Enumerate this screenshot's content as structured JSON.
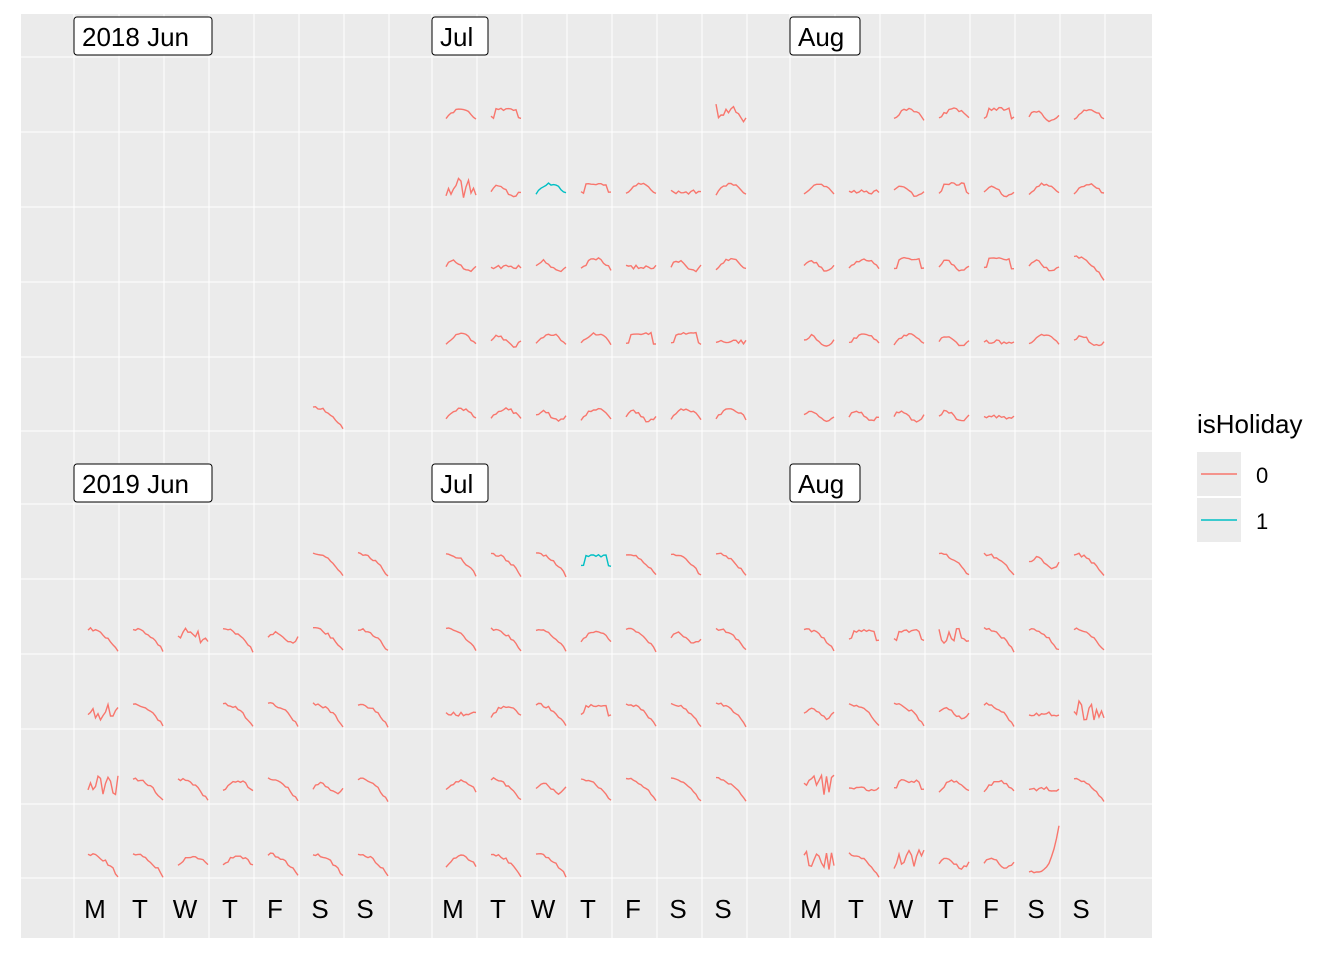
{
  "chart_data": {
    "type": "line",
    "description_type": "calendar-faceted sparkline grid",
    "years": [
      {
        "label_year": "2018",
        "months": [
          {
            "label": "2018 Jun",
            "weeks": [
              [
                null,
                null,
                null,
                null,
                null,
                null,
                null
              ],
              [
                null,
                null,
                null,
                null,
                null,
                null,
                null
              ],
              [
                null,
                null,
                null,
                null,
                null,
                null,
                null
              ],
              [
                null,
                null,
                null,
                null,
                null,
                null,
                null
              ],
              [
                null,
                null,
                null,
                null,
                null,
                {
                  "h": 0,
                  "shape": "drop"
                },
                null
              ]
            ]
          },
          {
            "label": "Jul",
            "weeks": [
              [
                {
                  "h": 0,
                  "shape": "arch"
                },
                {
                  "h": 0,
                  "shape": "plateau"
                },
                null,
                null,
                null,
                null,
                {
                  "h": 0,
                  "shape": "spiky"
                }
              ],
              [
                {
                  "h": 0,
                  "shape": "spiky"
                },
                {
                  "h": 0,
                  "shape": "wave"
                },
                {
                  "h": 1,
                  "shape": "arch"
                },
                {
                  "h": 0,
                  "shape": "plateau"
                },
                {
                  "h": 0,
                  "shape": "arch"
                },
                {
                  "h": 0,
                  "shape": "flat"
                },
                {
                  "h": 0,
                  "shape": "arch"
                }
              ],
              [
                {
                  "h": 0,
                  "shape": "wave"
                },
                {
                  "h": 0,
                  "shape": "flat"
                },
                {
                  "h": 0,
                  "shape": "wave"
                },
                {
                  "h": 0,
                  "shape": "arch"
                },
                {
                  "h": 0,
                  "shape": "flat"
                },
                {
                  "h": 0,
                  "shape": "wave"
                },
                {
                  "h": 0,
                  "shape": "arch"
                }
              ],
              [
                {
                  "h": 0,
                  "shape": "arch"
                },
                {
                  "h": 0,
                  "shape": "wave"
                },
                {
                  "h": 0,
                  "shape": "arch"
                },
                {
                  "h": 0,
                  "shape": "arch"
                },
                {
                  "h": 0,
                  "shape": "plateau"
                },
                {
                  "h": 0,
                  "shape": "plateau"
                },
                {
                  "h": 0,
                  "shape": "flat"
                }
              ],
              [
                {
                  "h": 0,
                  "shape": "arch"
                },
                {
                  "h": 0,
                  "shape": "arch"
                },
                {
                  "h": 0,
                  "shape": "wave"
                },
                {
                  "h": 0,
                  "shape": "arch"
                },
                {
                  "h": 0,
                  "shape": "wave"
                },
                {
                  "h": 0,
                  "shape": "arch"
                },
                {
                  "h": 0,
                  "shape": "arch"
                }
              ]
            ]
          },
          {
            "label": "Aug",
            "weeks": [
              [
                null,
                null,
                {
                  "h": 0,
                  "shape": "arch"
                },
                {
                  "h": 0,
                  "shape": "arch"
                },
                {
                  "h": 0,
                  "shape": "plateau"
                },
                {
                  "h": 0,
                  "shape": "wave"
                },
                {
                  "h": 0,
                  "shape": "arch"
                }
              ],
              [
                {
                  "h": 0,
                  "shape": "arch"
                },
                {
                  "h": 0,
                  "shape": "flat"
                },
                {
                  "h": 0,
                  "shape": "wave"
                },
                {
                  "h": 0,
                  "shape": "plateau"
                },
                {
                  "h": 0,
                  "shape": "wave"
                },
                {
                  "h": 0,
                  "shape": "arch"
                },
                {
                  "h": 0,
                  "shape": "arch"
                }
              ],
              [
                {
                  "h": 0,
                  "shape": "wave"
                },
                {
                  "h": 0,
                  "shape": "arch"
                },
                {
                  "h": 0,
                  "shape": "plateau"
                },
                {
                  "h": 0,
                  "shape": "wave"
                },
                {
                  "h": 0,
                  "shape": "plateau"
                },
                {
                  "h": 0,
                  "shape": "wave"
                },
                {
                  "h": 0,
                  "shape": "drop"
                }
              ],
              [
                {
                  "h": 0,
                  "shape": "wave"
                },
                {
                  "h": 0,
                  "shape": "arch"
                },
                {
                  "h": 0,
                  "shape": "arch"
                },
                {
                  "h": 0,
                  "shape": "wave"
                },
                {
                  "h": 0,
                  "shape": "flat"
                },
                {
                  "h": 0,
                  "shape": "arch"
                },
                {
                  "h": 0,
                  "shape": "wave"
                }
              ],
              [
                {
                  "h": 0,
                  "shape": "wave"
                },
                {
                  "h": 0,
                  "shape": "wave"
                },
                {
                  "h": 0,
                  "shape": "wave"
                },
                {
                  "h": 0,
                  "shape": "wave"
                },
                {
                  "h": 0,
                  "shape": "flat"
                },
                null,
                null
              ]
            ]
          }
        ]
      },
      {
        "label_year": "2019",
        "months": [
          {
            "label": "2019 Jun",
            "weeks": [
              [
                null,
                null,
                null,
                null,
                null,
                {
                  "h": 0,
                  "shape": "drop"
                },
                {
                  "h": 0,
                  "shape": "drop"
                }
              ],
              [
                {
                  "h": 0,
                  "shape": "drop"
                },
                {
                  "h": 0,
                  "shape": "drop"
                },
                {
                  "h": 0,
                  "shape": "spiky"
                },
                {
                  "h": 0,
                  "shape": "drop"
                },
                {
                  "h": 0,
                  "shape": "wave"
                },
                {
                  "h": 0,
                  "shape": "drop"
                },
                {
                  "h": 0,
                  "shape": "drop"
                }
              ],
              [
                {
                  "h": 0,
                  "shape": "spiky"
                },
                {
                  "h": 0,
                  "shape": "drop"
                },
                null,
                {
                  "h": 0,
                  "shape": "drop"
                },
                {
                  "h": 0,
                  "shape": "drop"
                },
                {
                  "h": 0,
                  "shape": "drop"
                },
                {
                  "h": 0,
                  "shape": "drop"
                }
              ],
              [
                {
                  "h": 0,
                  "shape": "spiky"
                },
                {
                  "h": 0,
                  "shape": "drop"
                },
                {
                  "h": 0,
                  "shape": "drop"
                },
                {
                  "h": 0,
                  "shape": "arch"
                },
                {
                  "h": 0,
                  "shape": "drop"
                },
                {
                  "h": 0,
                  "shape": "wave"
                },
                {
                  "h": 0,
                  "shape": "drop"
                }
              ],
              [
                {
                  "h": 0,
                  "shape": "drop"
                },
                {
                  "h": 0,
                  "shape": "drop"
                },
                {
                  "h": 0,
                  "shape": "arch"
                },
                {
                  "h": 0,
                  "shape": "arch"
                },
                {
                  "h": 0,
                  "shape": "drop"
                },
                {
                  "h": 0,
                  "shape": "drop"
                },
                {
                  "h": 0,
                  "shape": "drop"
                }
              ]
            ]
          },
          {
            "label": "Jul",
            "weeks": [
              [
                {
                  "h": 0,
                  "shape": "drop"
                },
                {
                  "h": 0,
                  "shape": "drop"
                },
                {
                  "h": 0,
                  "shape": "drop"
                },
                {
                  "h": 1,
                  "shape": "plateau"
                },
                {
                  "h": 0,
                  "shape": "drop"
                },
                {
                  "h": 0,
                  "shape": "drop"
                },
                {
                  "h": 0,
                  "shape": "drop"
                }
              ],
              [
                {
                  "h": 0,
                  "shape": "drop"
                },
                {
                  "h": 0,
                  "shape": "drop"
                },
                {
                  "h": 0,
                  "shape": "drop"
                },
                {
                  "h": 0,
                  "shape": "arch"
                },
                {
                  "h": 0,
                  "shape": "drop"
                },
                {
                  "h": 0,
                  "shape": "wave"
                },
                {
                  "h": 0,
                  "shape": "drop"
                }
              ],
              [
                {
                  "h": 0,
                  "shape": "flat"
                },
                {
                  "h": 0,
                  "shape": "arch"
                },
                {
                  "h": 0,
                  "shape": "drop"
                },
                {
                  "h": 0,
                  "shape": "plateau"
                },
                {
                  "h": 0,
                  "shape": "drop"
                },
                {
                  "h": 0,
                  "shape": "drop"
                },
                {
                  "h": 0,
                  "shape": "drop"
                }
              ],
              [
                {
                  "h": 0,
                  "shape": "arch"
                },
                {
                  "h": 0,
                  "shape": "drop"
                },
                {
                  "h": 0,
                  "shape": "wave"
                },
                {
                  "h": 0,
                  "shape": "drop"
                },
                {
                  "h": 0,
                  "shape": "drop"
                },
                {
                  "h": 0,
                  "shape": "drop"
                },
                {
                  "h": 0,
                  "shape": "drop"
                }
              ],
              [
                {
                  "h": 0,
                  "shape": "arch"
                },
                {
                  "h": 0,
                  "shape": "drop"
                },
                {
                  "h": 0,
                  "shape": "drop"
                },
                null,
                null,
                null,
                null
              ]
            ]
          },
          {
            "label": "Aug",
            "weeks": [
              [
                null,
                null,
                null,
                {
                  "h": 0,
                  "shape": "drop"
                },
                {
                  "h": 0,
                  "shape": "drop"
                },
                {
                  "h": 0,
                  "shape": "wave"
                },
                {
                  "h": 0,
                  "shape": "drop"
                }
              ],
              [
                {
                  "h": 0,
                  "shape": "drop"
                },
                {
                  "h": 0,
                  "shape": "plateau"
                },
                {
                  "h": 0,
                  "shape": "plateau"
                },
                {
                  "h": 0,
                  "shape": "spiky"
                },
                {
                  "h": 0,
                  "shape": "drop"
                },
                {
                  "h": 0,
                  "shape": "drop"
                },
                {
                  "h": 0,
                  "shape": "drop"
                }
              ],
              [
                {
                  "h": 0,
                  "shape": "wave"
                },
                {
                  "h": 0,
                  "shape": "drop"
                },
                {
                  "h": 0,
                  "shape": "drop"
                },
                {
                  "h": 0,
                  "shape": "wave"
                },
                {
                  "h": 0,
                  "shape": "drop"
                },
                {
                  "h": 0,
                  "shape": "flat"
                },
                {
                  "h": 0,
                  "shape": "spiky"
                }
              ],
              [
                {
                  "h": 0,
                  "shape": "spiky"
                },
                {
                  "h": 0,
                  "shape": "flat"
                },
                {
                  "h": 0,
                  "shape": "plateau"
                },
                {
                  "h": 0,
                  "shape": "arch"
                },
                {
                  "h": 0,
                  "shape": "arch"
                },
                {
                  "h": 0,
                  "shape": "flat"
                },
                {
                  "h": 0,
                  "shape": "drop"
                }
              ],
              [
                {
                  "h": 0,
                  "shape": "spiky"
                },
                {
                  "h": 0,
                  "shape": "drop"
                },
                {
                  "h": 0,
                  "shape": "spiky"
                },
                {
                  "h": 0,
                  "shape": "wave"
                },
                {
                  "h": 0,
                  "shape": "wave"
                },
                {
                  "h": 0,
                  "shape": "rise"
                },
                null
              ]
            ]
          }
        ]
      }
    ],
    "day_labels": [
      "M",
      "T",
      "W",
      "T",
      "F",
      "S",
      "S"
    ],
    "legend": {
      "title": "isHoliday",
      "entries": [
        {
          "label": "0",
          "color": "#F8766D"
        },
        {
          "label": "1",
          "color": "#00BFC4"
        }
      ],
      "placement": "right"
    },
    "background": "#EBEBEB",
    "gridline_color": "#FFFFFF"
  }
}
